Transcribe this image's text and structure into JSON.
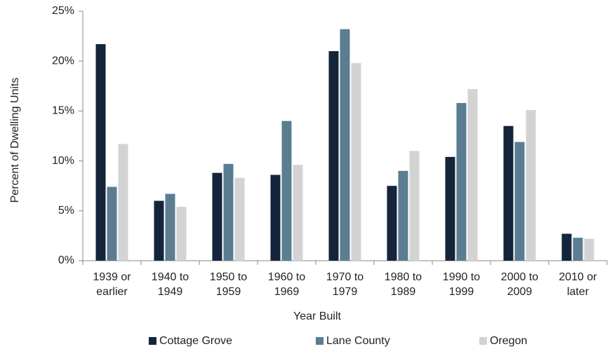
{
  "chart_data": {
    "type": "bar",
    "x_label": "Year Built",
    "y_label": "Percent of Dwelling Units",
    "categories": [
      "1939 or earlier",
      "1940 to 1949",
      "1950 to 1959",
      "1960 to 1969",
      "1970 to 1979",
      "1980 to 1989",
      "1990 to 1999",
      "2000 to 2009",
      "2010 or later"
    ],
    "series": [
      {
        "name": "Cottage Grove",
        "color": "#14243b",
        "values": [
          21.7,
          6.0,
          8.8,
          8.6,
          21.0,
          7.5,
          10.4,
          13.5,
          2.7
        ]
      },
      {
        "name": "Lane County",
        "color": "#5a7d92",
        "values": [
          7.4,
          6.7,
          9.7,
          14.0,
          23.2,
          9.0,
          15.8,
          11.9,
          2.3
        ]
      },
      {
        "name": "Oregon",
        "color": "#d3d3d3",
        "values": [
          11.7,
          5.4,
          8.3,
          9.6,
          19.8,
          11.0,
          17.2,
          15.1,
          2.2
        ]
      }
    ],
    "ylim": [
      0,
      25
    ],
    "yticks": [
      {
        "value": 0,
        "label": "0%"
      },
      {
        "value": 5,
        "label": "5%"
      },
      {
        "value": 10,
        "label": "10%"
      },
      {
        "value": 15,
        "label": "15%"
      },
      {
        "value": 20,
        "label": "20%"
      },
      {
        "value": 25,
        "label": "25%"
      }
    ],
    "legend": "bottom"
  }
}
